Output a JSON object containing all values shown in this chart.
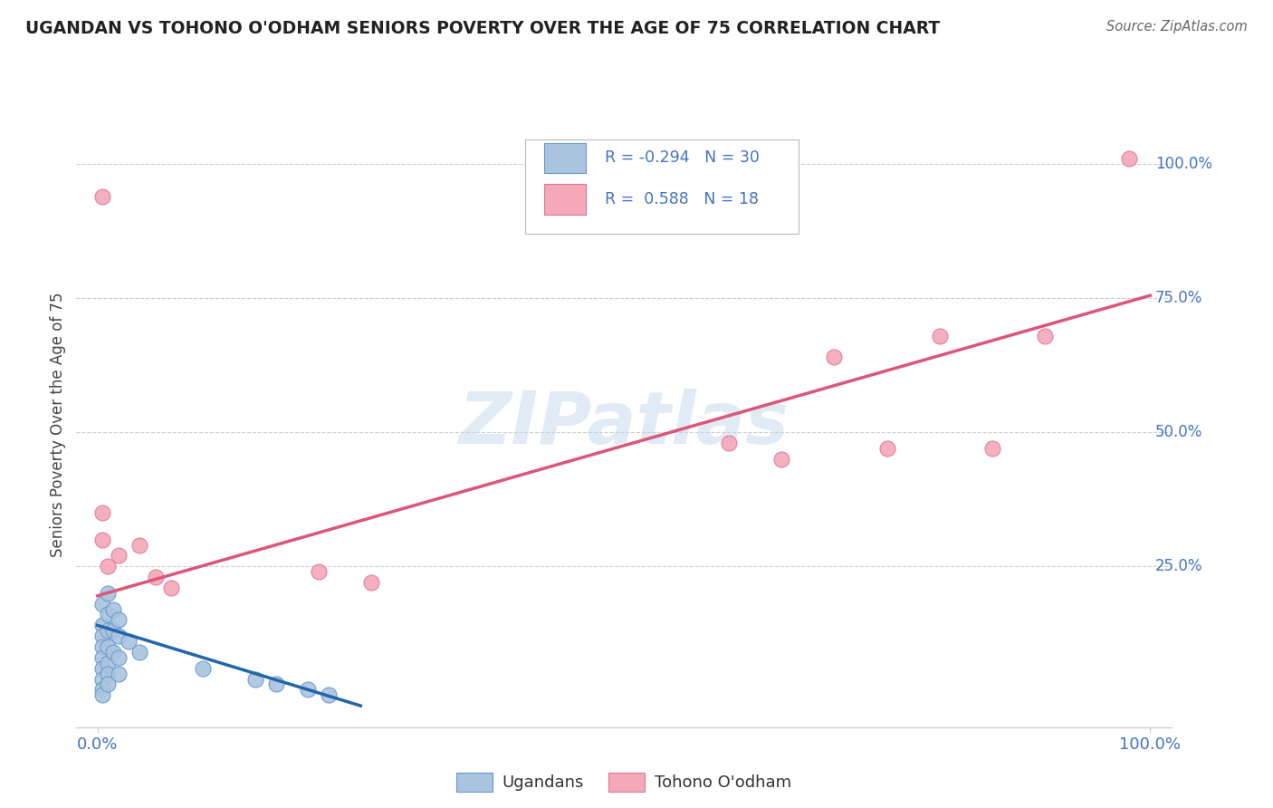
{
  "title": "UGANDAN VS TOHONO O'ODHAM SENIORS POVERTY OVER THE AGE OF 75 CORRELATION CHART",
  "source": "Source: ZipAtlas.com",
  "ylabel": "Seniors Poverty Over the Age of 75",
  "xlim": [
    -0.02,
    1.02
  ],
  "ylim": [
    -0.05,
    1.08
  ],
  "ugandan_color": "#aac4e0",
  "ugandan_edge_color": "#6699cc",
  "tohono_color": "#f4a8b8",
  "tohono_edge_color": "#dd7799",
  "ugandan_line_color": "#2266aa",
  "tohono_line_color": "#dd5577",
  "legend_ugandan_R": "-0.294",
  "legend_ugandan_N": "30",
  "legend_tohono_R": "0.588",
  "legend_tohono_N": "18",
  "watermark": "ZIPatlas",
  "ugandan_scatter_x": [
    0.005,
    0.005,
    0.005,
    0.005,
    0.005,
    0.005,
    0.005,
    0.005,
    0.005,
    0.01,
    0.01,
    0.01,
    0.01,
    0.01,
    0.01,
    0.01,
    0.015,
    0.015,
    0.015,
    0.02,
    0.02,
    0.02,
    0.02,
    0.03,
    0.04,
    0.1,
    0.15,
    0.17,
    0.2,
    0.22
  ],
  "ugandan_scatter_y": [
    0.18,
    0.14,
    0.12,
    0.1,
    0.08,
    0.06,
    0.04,
    0.02,
    0.01,
    0.2,
    0.16,
    0.13,
    0.1,
    0.07,
    0.05,
    0.03,
    0.17,
    0.13,
    0.09,
    0.15,
    0.12,
    0.08,
    0.05,
    0.11,
    0.09,
    0.06,
    0.04,
    0.03,
    0.02,
    0.01
  ],
  "tohono_scatter_x": [
    0.005,
    0.005,
    0.005,
    0.01,
    0.02,
    0.04,
    0.055,
    0.07,
    0.21,
    0.26,
    0.6,
    0.65,
    0.7,
    0.75,
    0.8,
    0.85,
    0.9,
    0.98
  ],
  "tohono_scatter_y": [
    0.94,
    0.35,
    0.3,
    0.25,
    0.27,
    0.29,
    0.23,
    0.21,
    0.24,
    0.22,
    0.48,
    0.45,
    0.64,
    0.47,
    0.68,
    0.47,
    0.68,
    1.01
  ],
  "ugandan_line_x": [
    0.0,
    0.25
  ],
  "ugandan_line_y": [
    0.14,
    -0.01
  ],
  "tohono_line_x": [
    0.0,
    1.0
  ],
  "tohono_line_y": [
    0.195,
    0.755
  ],
  "grid_color": "#cccccc",
  "background_color": "#ffffff",
  "title_color": "#222222",
  "axis_label_color": "#444444",
  "tick_label_color": "#4472c4",
  "source_color": "#666666",
  "ytick_positions": [
    0.25,
    0.5,
    0.75,
    1.0
  ],
  "ytick_labels": [
    "25.0%",
    "50.0%",
    "75.0%",
    "100.0%"
  ]
}
